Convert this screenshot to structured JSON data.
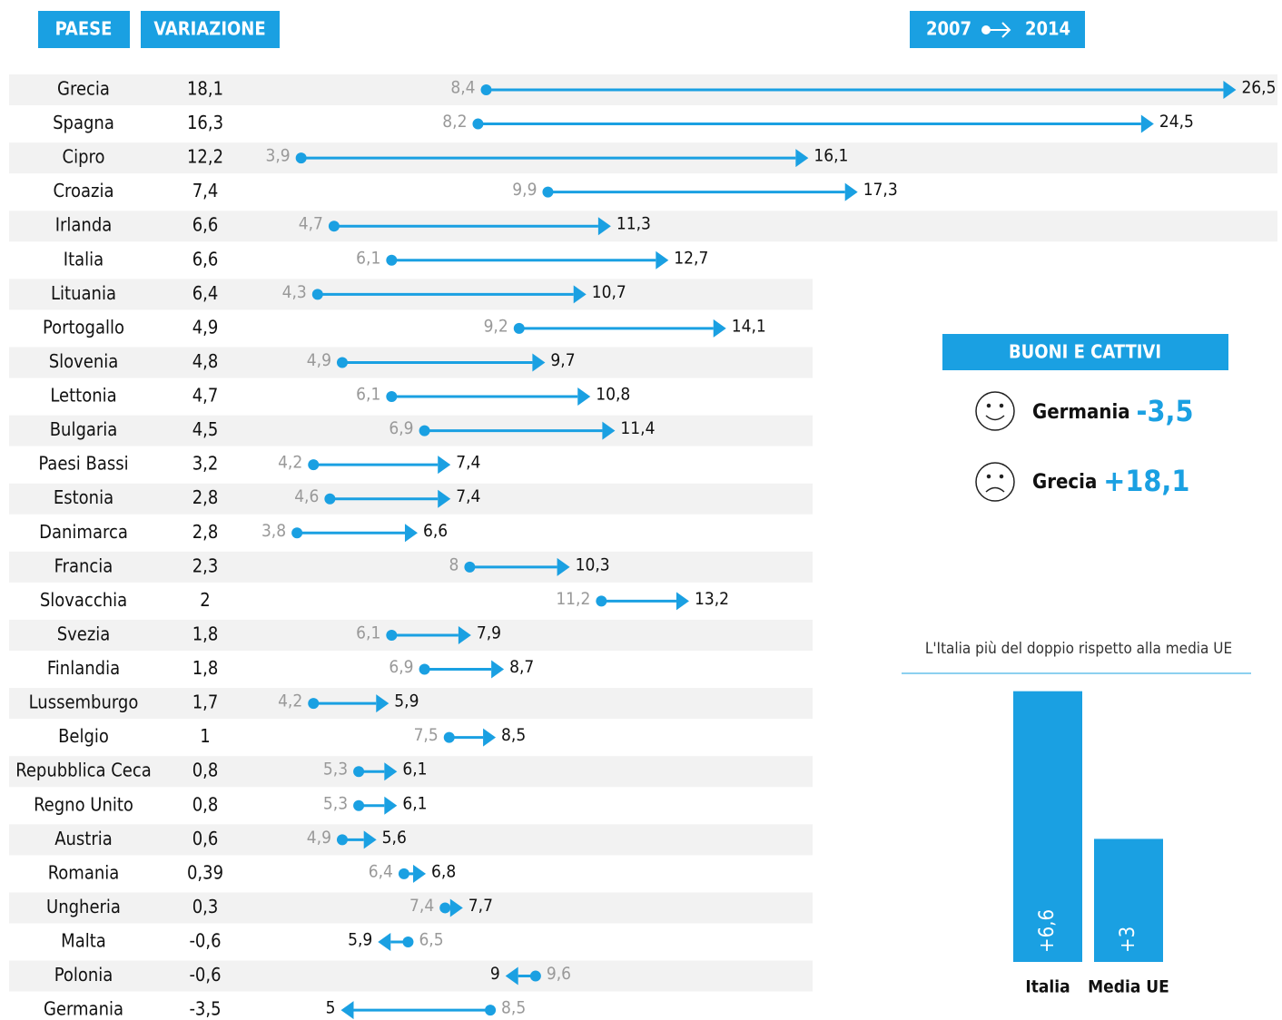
{
  "chart_data": [
    {
      "type": "arrow",
      "category_header": "PAESE",
      "categories": [
        "Grecia",
        "Spagna",
        "Cipro",
        "Croazia",
        "Irlanda",
        "Italia",
        "Lituania",
        "Portogallo",
        "Slovenia",
        "Lettonia",
        "Bulgaria",
        "Paesi Bassi",
        "Estonia",
        "Danimarca",
        "Francia",
        "Slovacchia",
        "Svezia",
        "Finlandia",
        "Lussemburgo",
        "Belgio",
        "Repubblica Ceca",
        "Regno Unito",
        "Austria",
        "Romania",
        "Ungheria",
        "Malta",
        "Polonia",
        "Germania"
      ],
      "color": "#1aa0e2",
      "series": [
        {
          "name": "VARIAZIONE",
          "values": [
            18.1,
            16.3,
            12.2,
            7.4,
            6.6,
            6.6,
            6.4,
            4.9,
            4.8,
            4.7,
            4.5,
            3.2,
            2.8,
            2.8,
            2.3,
            2,
            1.8,
            1.8,
            1.7,
            1,
            0.8,
            0.8,
            0.6,
            0.39,
            0.3,
            -0.6,
            -0.6,
            -3.5
          ],
          "value_labels": [
            "18,1",
            "16,3",
            "12,2",
            "7,4",
            "6,6",
            "6,6",
            "6,4",
            "4,9",
            "4,8",
            "4,7",
            "4,5",
            "3,2",
            "2,8",
            "2,8",
            "2,3",
            "2",
            "1,8",
            "1,8",
            "1,7",
            "1",
            "0,8",
            "0,8",
            "0,6",
            "0,39",
            "0,3",
            "-0,6",
            "-0,6",
            "-3,5"
          ]
        },
        {
          "name": "2007",
          "values": [
            8.4,
            8.2,
            3.9,
            9.9,
            4.7,
            6.1,
            4.3,
            9.2,
            4.9,
            6.1,
            6.9,
            4.2,
            4.6,
            3.8,
            8,
            11.2,
            6.1,
            6.9,
            4.2,
            7.5,
            5.3,
            5.3,
            4.9,
            6.4,
            7.4,
            6.5,
            9.6,
            8.5
          ],
          "value_labels": [
            "8,4",
            "8,2",
            "3,9",
            "9,9",
            "4,7",
            "6,1",
            "4,3",
            "9,2",
            "4,9",
            "6,1",
            "6,9",
            "4,2",
            "4,6",
            "3,8",
            "8",
            "11,2",
            "6,1",
            "6,9",
            "4,2",
            "7,5",
            "5,3",
            "5,3",
            "4,9",
            "6,4",
            "7,4",
            "6,5",
            "9,6",
            "8,5"
          ]
        },
        {
          "name": "2014",
          "values": [
            26.5,
            24.5,
            16.1,
            17.3,
            11.3,
            12.7,
            10.7,
            14.1,
            9.7,
            10.8,
            11.4,
            7.4,
            7.4,
            6.6,
            10.3,
            13.2,
            7.9,
            8.7,
            5.9,
            8.5,
            6.1,
            6.1,
            5.6,
            6.8,
            7.7,
            5.9,
            9,
            5
          ],
          "value_labels": [
            "26,5",
            "24,5",
            "16,1",
            "17,3",
            "11,3",
            "12,7",
            "10,7",
            "14,1",
            "9,7",
            "10,8",
            "11,4",
            "7,4",
            "7,4",
            "6,6",
            "10,3",
            "13,2",
            "7,9",
            "8,7",
            "5,9",
            "8,5",
            "6,1",
            "6,1",
            "5,6",
            "6,8",
            "7,7",
            "5,9",
            "9",
            "5"
          ]
        }
      ]
    },
    {
      "type": "bar",
      "subtitle": "L'Italia più del doppio rispetto alla media UE",
      "categories": [
        "Italia",
        "Media UE"
      ],
      "values": [
        6.6,
        3
      ],
      "value_labels": [
        "+6,6",
        "+3"
      ],
      "color": "#1aa0e2"
    }
  ],
  "panel": {
    "title": "BUONI E CATTIVI",
    "items": [
      {
        "name": "Germania",
        "label": "-3,5"
      },
      {
        "name": "Grecia",
        "label": "+18,1"
      }
    ]
  }
}
